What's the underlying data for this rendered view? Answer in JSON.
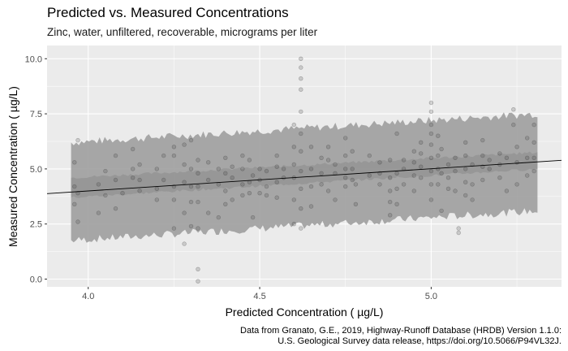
{
  "chart_data": {
    "type": "scatter",
    "title": "Predicted vs. Measured Concentrations",
    "subtitle": "Zinc, water, unfiltered, recoverable, micrograms per liter",
    "xlabel": "Predicted Concentration ( µg/L)",
    "ylabel": "Measured Concentration ( µg/L)",
    "xlim": [
      3.88,
      5.38
    ],
    "ylim": [
      -0.35,
      10.6
    ],
    "x_ticks": [
      "4.0",
      "4.5",
      "5.0"
    ],
    "x_tick_values": [
      4.0,
      4.5,
      5.0
    ],
    "y_ticks": [
      "0.0",
      "2.5",
      "5.0",
      "7.5",
      "10.0"
    ],
    "y_tick_values": [
      0.0,
      2.5,
      5.0,
      7.5,
      10.0
    ],
    "grid": true,
    "background": "#ebebeb",
    "grid_color": "#ffffff",
    "point_color": "#333333",
    "band_color": "#9e9e9e",
    "confidence_band_color": "#8a8a8a",
    "fit_line_color": "#000000",
    "fit_line": {
      "x": [
        3.88,
        5.38
      ],
      "y": [
        3.88,
        5.39
      ]
    },
    "prediction_band": {
      "x": [
        3.95,
        5.31
      ],
      "lower": [
        1.75,
        3.1
      ],
      "upper": [
        6.2,
        7.5
      ]
    },
    "confidence_band": {
      "x": [
        3.95,
        5.31
      ],
      "lower": [
        3.7,
        5.0
      ],
      "upper": [
        4.6,
        5.75
      ]
    },
    "points": [
      [
        3.96,
        3.4
      ],
      [
        3.96,
        4.2
      ],
      [
        3.96,
        5.3
      ],
      [
        3.97,
        2.6
      ],
      [
        3.97,
        3.9
      ],
      [
        3.97,
        6.3
      ],
      [
        4.03,
        3.0
      ],
      [
        4.03,
        4.3
      ],
      [
        4.05,
        3.8
      ],
      [
        4.05,
        4.9
      ],
      [
        4.08,
        3.2
      ],
      [
        4.08,
        4.5
      ],
      [
        4.08,
        5.6
      ],
      [
        4.1,
        3.9
      ],
      [
        4.13,
        4.6
      ],
      [
        4.13,
        5.0
      ],
      [
        4.13,
        5.9
      ],
      [
        4.15,
        4.0
      ],
      [
        4.15,
        4.5
      ],
      [
        4.15,
        5.2
      ],
      [
        4.2,
        3.6
      ],
      [
        4.2,
        4.1
      ],
      [
        4.2,
        5.0
      ],
      [
        4.22,
        4.5
      ],
      [
        4.22,
        5.6
      ],
      [
        4.25,
        2.3
      ],
      [
        4.25,
        3.6
      ],
      [
        4.25,
        4.2
      ],
      [
        4.25,
        5.6
      ],
      [
        4.25,
        6.0
      ],
      [
        4.28,
        1.6
      ],
      [
        4.28,
        3.0
      ],
      [
        4.28,
        4.4
      ],
      [
        4.28,
        5.2
      ],
      [
        4.28,
        6.1
      ],
      [
        4.3,
        2.4
      ],
      [
        4.3,
        3.5
      ],
      [
        4.3,
        4.2
      ],
      [
        4.3,
        5.0
      ],
      [
        4.3,
        6.3
      ],
      [
        4.32,
        0.45
      ],
      [
        4.32,
        -0.1
      ],
      [
        4.32,
        2.3
      ],
      [
        4.32,
        3.5
      ],
      [
        4.32,
        4.2
      ],
      [
        4.32,
        4.8
      ],
      [
        4.32,
        5.4
      ],
      [
        4.35,
        3.0
      ],
      [
        4.35,
        4.5
      ],
      [
        4.35,
        5.3
      ],
      [
        4.38,
        2.8
      ],
      [
        4.38,
        4.3
      ],
      [
        4.38,
        5.0
      ],
      [
        4.4,
        3.4
      ],
      [
        4.4,
        4.0
      ],
      [
        4.4,
        4.8
      ],
      [
        4.4,
        5.5
      ],
      [
        4.42,
        3.6
      ],
      [
        4.42,
        4.6
      ],
      [
        4.42,
        5.1
      ],
      [
        4.45,
        3.8
      ],
      [
        4.45,
        4.3
      ],
      [
        4.45,
        5.0
      ],
      [
        4.45,
        5.6
      ],
      [
        4.47,
        3.9
      ],
      [
        4.47,
        4.4
      ],
      [
        4.47,
        5.4
      ],
      [
        4.48,
        2.8
      ],
      [
        4.48,
        4.7
      ],
      [
        4.5,
        3.9
      ],
      [
        4.5,
        4.5
      ],
      [
        4.5,
        5.0
      ],
      [
        4.52,
        3.8
      ],
      [
        4.52,
        4.2
      ],
      [
        4.52,
        4.9
      ],
      [
        4.55,
        3.7
      ],
      [
        4.55,
        4.4
      ],
      [
        4.55,
        5.1
      ],
      [
        4.55,
        5.6
      ],
      [
        4.57,
        4.6
      ],
      [
        4.57,
        5.0
      ],
      [
        4.6,
        2.5
      ],
      [
        4.6,
        3.6
      ],
      [
        4.6,
        4.6
      ],
      [
        4.6,
        5.2
      ],
      [
        4.6,
        6.0
      ],
      [
        4.6,
        7.0
      ],
      [
        4.62,
        10.0
      ],
      [
        4.62,
        9.6
      ],
      [
        4.62,
        9.1
      ],
      [
        4.62,
        8.6
      ],
      [
        4.62,
        7.6
      ],
      [
        4.62,
        6.6
      ],
      [
        4.62,
        5.8
      ],
      [
        4.62,
        4.9
      ],
      [
        4.62,
        4.1
      ],
      [
        4.62,
        3.2
      ],
      [
        4.62,
        2.3
      ],
      [
        4.65,
        3.3
      ],
      [
        4.65,
        4.2
      ],
      [
        4.65,
        5.0
      ],
      [
        4.65,
        6.0
      ],
      [
        4.68,
        4.3
      ],
      [
        4.68,
        4.8
      ],
      [
        4.68,
        5.5
      ],
      [
        4.7,
        4.0
      ],
      [
        4.7,
        5.4
      ],
      [
        4.7,
        6.0
      ],
      [
        4.72,
        3.6
      ],
      [
        4.72,
        4.8
      ],
      [
        4.72,
        5.2
      ],
      [
        4.75,
        4.2
      ],
      [
        4.75,
        4.6
      ],
      [
        4.75,
        5.0
      ],
      [
        4.75,
        5.6
      ],
      [
        4.75,
        6.4
      ],
      [
        4.77,
        4.5
      ],
      [
        4.77,
        5.0
      ],
      [
        4.77,
        5.8
      ],
      [
        4.78,
        3.4
      ],
      [
        4.78,
        4.3
      ],
      [
        4.82,
        4.7
      ],
      [
        4.82,
        5.6
      ],
      [
        4.85,
        4.3
      ],
      [
        4.85,
        4.8
      ],
      [
        4.85,
        5.3
      ],
      [
        4.88,
        2.9
      ],
      [
        4.88,
        3.5
      ],
      [
        4.88,
        4.0
      ],
      [
        4.88,
        4.6
      ],
      [
        4.88,
        5.4
      ],
      [
        4.9,
        3.4
      ],
      [
        4.9,
        4.1
      ],
      [
        4.9,
        4.8
      ],
      [
        4.9,
        6.6
      ],
      [
        4.92,
        4.3
      ],
      [
        4.92,
        5.0
      ],
      [
        4.92,
        5.4
      ],
      [
        4.95,
        4.0
      ],
      [
        4.95,
        4.7
      ],
      [
        4.95,
        5.3
      ],
      [
        4.95,
        5.8
      ],
      [
        4.97,
        4.6
      ],
      [
        4.97,
        5.1
      ],
      [
        4.97,
        5.7
      ],
      [
        4.97,
        6.2
      ],
      [
        5.0,
        3.6
      ],
      [
        5.0,
        4.3
      ],
      [
        5.0,
        4.9
      ],
      [
        5.0,
        5.5
      ],
      [
        5.0,
        6.1
      ],
      [
        5.0,
        6.6
      ],
      [
        5.0,
        7.0
      ],
      [
        5.0,
        7.6
      ],
      [
        5.0,
        8.0
      ],
      [
        5.02,
        4.3
      ],
      [
        5.02,
        5.0
      ],
      [
        5.02,
        5.6
      ],
      [
        5.02,
        6.5
      ],
      [
        5.03,
        3.1
      ],
      [
        5.03,
        4.8
      ],
      [
        5.03,
        5.9
      ],
      [
        5.05,
        4.1
      ],
      [
        5.05,
        4.6
      ],
      [
        5.05,
        5.2
      ],
      [
        5.07,
        4.0
      ],
      [
        5.07,
        4.9
      ],
      [
        5.07,
        5.5
      ],
      [
        5.1,
        3.8
      ],
      [
        5.1,
        4.4
      ],
      [
        5.1,
        5.0
      ],
      [
        5.1,
        5.6
      ],
      [
        5.1,
        6.2
      ],
      [
        5.12,
        3.6
      ],
      [
        5.12,
        4.3
      ],
      [
        5.12,
        5.2
      ],
      [
        5.08,
        2.3
      ],
      [
        5.08,
        2.1
      ],
      [
        5.15,
        4.5
      ],
      [
        5.15,
        5.1
      ],
      [
        5.15,
        5.6
      ],
      [
        5.15,
        6.3
      ],
      [
        5.17,
        5.0
      ],
      [
        5.17,
        5.4
      ],
      [
        5.2,
        4.6
      ],
      [
        5.2,
        5.2
      ],
      [
        5.2,
        5.7
      ],
      [
        5.22,
        4.0
      ],
      [
        5.22,
        5.5
      ],
      [
        5.24,
        7.7
      ],
      [
        5.24,
        7.0
      ],
      [
        5.25,
        4.3
      ],
      [
        5.25,
        5.3
      ],
      [
        5.25,
        6.0
      ],
      [
        5.28,
        4.7
      ],
      [
        5.28,
        5.5
      ],
      [
        5.28,
        6.4
      ],
      [
        5.3,
        4.9
      ],
      [
        5.3,
        5.5
      ],
      [
        5.3,
        6.2
      ],
      [
        5.3,
        7.0
      ]
    ]
  },
  "caption": {
    "line1": "Data from Granato, G.E., 2019, Highway-Runoff Database (HRDB) Version 1.1.0:",
    "line2": "U.S. Geological Survey data release, https://doi.org/10.5066/P94VL32J."
  }
}
